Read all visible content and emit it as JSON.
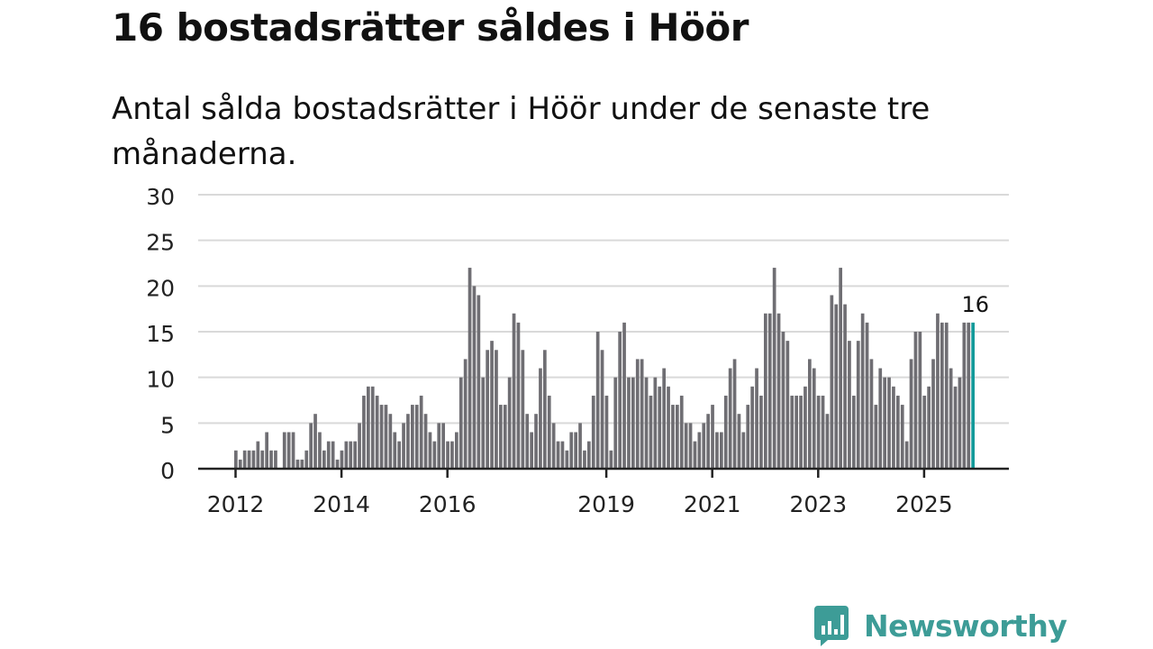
{
  "title": "16 bostadsrätter såldes i Höör",
  "subtitle": "Antal sålda bostadsrätter i Höör under de senaste tre månaderna.",
  "brand": {
    "name": "Newsworthy",
    "color": "#3d9c97"
  },
  "colors": {
    "bar": "#6f6e73",
    "highlight": "#139a9a",
    "grid": "#d9d9d9",
    "axis": "#222222"
  },
  "chart_data": {
    "type": "bar",
    "title": "16 bostadsrätter såldes i Höör",
    "xlabel": "",
    "ylabel": "",
    "ylim": [
      0,
      30
    ],
    "yticks": [
      0,
      5,
      10,
      15,
      20,
      25,
      30
    ],
    "start": "2012-01",
    "xticks": [
      "2012",
      "2014",
      "2016",
      "2019",
      "2021",
      "2023",
      "2025"
    ],
    "grid": true,
    "highlight_label": "16",
    "values": [
      2,
      1,
      2,
      2,
      2,
      3,
      2,
      4,
      2,
      2,
      0,
      4,
      4,
      4,
      1,
      1,
      2,
      5,
      6,
      4,
      2,
      3,
      3,
      1,
      2,
      3,
      3,
      3,
      5,
      8,
      9,
      9,
      8,
      7,
      7,
      6,
      4,
      3,
      5,
      6,
      7,
      7,
      8,
      6,
      4,
      3,
      5,
      5,
      3,
      3,
      4,
      10,
      12,
      22,
      20,
      19,
      10,
      13,
      14,
      13,
      7,
      7,
      10,
      17,
      16,
      13,
      6,
      4,
      6,
      11,
      13,
      8,
      5,
      3,
      3,
      2,
      4,
      4,
      5,
      2,
      3,
      8,
      15,
      13,
      8,
      2,
      10,
      15,
      16,
      10,
      10,
      12,
      12,
      10,
      8,
      10,
      9,
      11,
      9,
      7,
      7,
      8,
      5,
      5,
      3,
      4,
      5,
      6,
      7,
      4,
      4,
      8,
      11,
      12,
      6,
      4,
      7,
      9,
      11,
      8,
      17,
      17,
      22,
      17,
      15,
      14,
      8,
      8,
      8,
      9,
      12,
      11,
      8,
      8,
      6,
      19,
      18,
      22,
      18,
      14,
      8,
      14,
      17,
      16,
      12,
      7,
      11,
      10,
      10,
      9,
      8,
      7,
      3,
      12,
      15,
      15,
      8,
      9,
      12,
      17,
      16,
      16,
      11,
      9,
      10,
      16,
      16,
      16
    ]
  }
}
